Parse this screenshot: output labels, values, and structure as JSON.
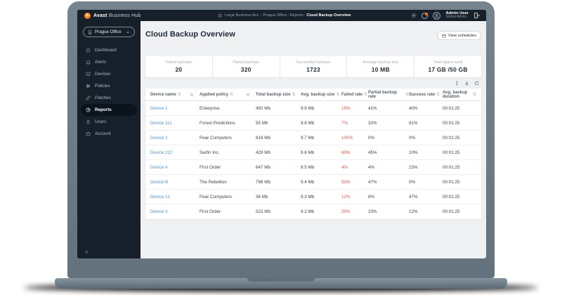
{
  "topbar": {
    "brand_bold": "Avast",
    "brand_rest": " Business Hub",
    "breadcrumb": [
      "Large Business Acc.",
      "Prague Office",
      "Reports",
      "Cloud Backup Overview"
    ],
    "user_name": "Admin User",
    "user_role": "Global Admin"
  },
  "sidebar": {
    "org_selector": "Prague Office",
    "items": [
      {
        "label": "Dashboard",
        "icon": "dashboard-icon",
        "active": false
      },
      {
        "label": "Alerts",
        "icon": "alerts-bell-icon",
        "active": false
      },
      {
        "label": "Devices",
        "icon": "devices-monitor-icon",
        "active": false
      },
      {
        "label": "Policies",
        "icon": "policies-sliders-icon",
        "active": false
      },
      {
        "label": "Patches",
        "icon": "patches-bandage-icon",
        "active": false
      },
      {
        "label": "Reports",
        "icon": "reports-pie-icon",
        "active": true
      },
      {
        "label": "Users",
        "icon": "users-person-icon",
        "active": false
      },
      {
        "label": "Account",
        "icon": "account-briefcase-icon",
        "active": false
      }
    ],
    "collapse_glyph": "«"
  },
  "main": {
    "title": "Cloud Backup Overview",
    "view_schedules_label": "View schedules",
    "stats": [
      {
        "label": "Failed backups",
        "value": "20"
      },
      {
        "label": "Partial backups",
        "value": "320"
      },
      {
        "label": "Successful backups",
        "value": "1723"
      },
      {
        "label": "Average backup size",
        "value": "10 MB"
      },
      {
        "label": "Total space used",
        "value": "17 GB /50 GB"
      }
    ],
    "table": {
      "sort_glyph": "⇅",
      "columns": [
        "Device name",
        "Applied policy",
        "Total backup size",
        "Avg. backup size",
        "Failed rate",
        "Partial backup rate",
        "Success rate",
        "Avg. backup duration"
      ],
      "rows": [
        {
          "device": "Device 1",
          "policy": "Enterprise",
          "total": "492 Mb",
          "avg": "9.9 Mb",
          "failed": "19%",
          "partial": "41%",
          "success": "40%",
          "duration": "00:01:25"
        },
        {
          "device": "Device 111",
          "policy": "Forest Predictions",
          "total": "55 Mb",
          "avg": "9.8 Mb",
          "failed": "7%",
          "partial": "32%",
          "success": "61%",
          "duration": "00:01:25"
        },
        {
          "device": "Device 2",
          "policy": "Pear Computers",
          "total": "816 Mb",
          "avg": "9.7 Mb",
          "failed": "100%",
          "partial": "0%",
          "success": "0%",
          "duration": "00:01:25"
        },
        {
          "device": "Device 222",
          "policy": "Sarfin Inc.",
          "total": "429 Mb",
          "avg": "9.6 Mb",
          "failed": "60%",
          "partial": "45%",
          "success": "10%",
          "duration": "00:01:25"
        },
        {
          "device": "Device A",
          "policy": "First Order",
          "total": "647 Mb",
          "avg": "9.5 Mb",
          "failed": "4%",
          "partial": "4%",
          "success": "23%",
          "duration": "00:01:25"
        },
        {
          "device": "Device B",
          "policy": "The Rebellion",
          "total": "798 Mb",
          "avg": "9.4 Mb",
          "failed": "53%",
          "partial": "47%",
          "success": "0%",
          "duration": "00:01:25"
        },
        {
          "device": "Device 12",
          "policy": "Pear Computers",
          "total": "36 Mb",
          "avg": "9.3 Mb",
          "failed": "12%",
          "partial": "8%",
          "success": "47%",
          "duration": "00:01:25"
        },
        {
          "device": "Device 3",
          "policy": "First Order",
          "total": "522 Mb",
          "avg": "9.2 Mb",
          "failed": "20%",
          "partial": "23%",
          "success": "12%",
          "duration": "00:01:25"
        }
      ]
    }
  },
  "colors": {
    "navy": "#15202b",
    "active_pill": "#0b141d",
    "accent_orange": "#ff7800",
    "link_blue": "#4d93d9",
    "failed_red": "#e05a4e",
    "page_bg": "#eef0f1"
  }
}
